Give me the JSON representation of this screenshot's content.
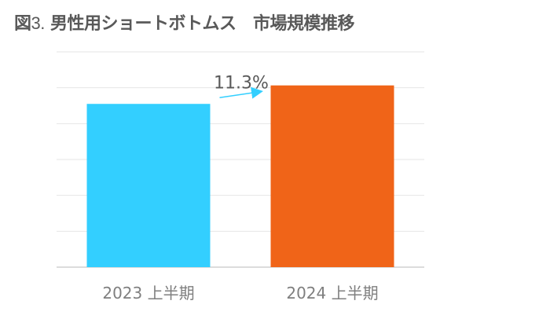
{
  "title": {
    "prefix": "図",
    "number": "3.",
    "text": " 男性用ショートボトムス　市場規模推移"
  },
  "chart_data": {
    "type": "bar",
    "categories": [
      "2023 上半期",
      "2024 上半期"
    ],
    "values": [
      91,
      101.3
    ],
    "ylim": [
      0,
      120
    ],
    "grid": true,
    "annotation": "11.3%",
    "colors": [
      "#33cfff",
      "#f06418"
    ],
    "gridline_color": "#e6e6e6",
    "axis_color": "#d0d0d0",
    "label_color": "#7f7f7f",
    "arrow_color": "#33cfff"
  }
}
